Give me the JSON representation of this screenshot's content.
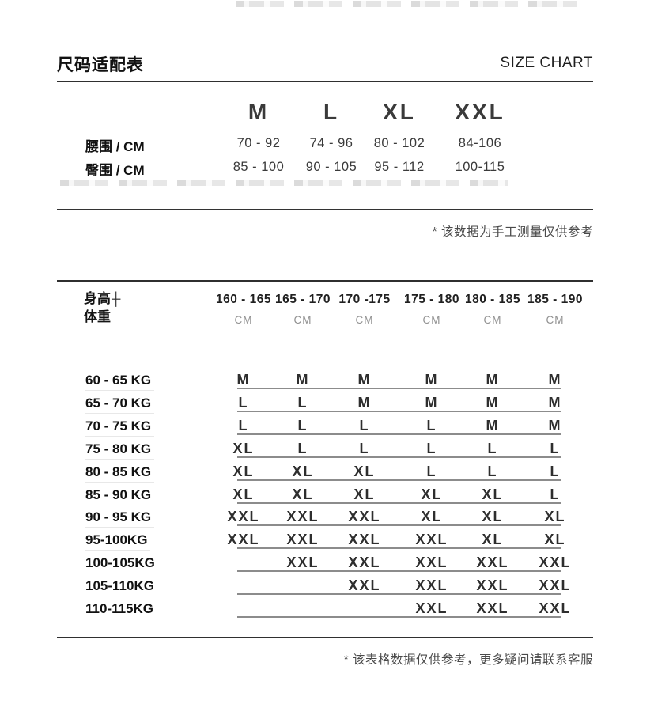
{
  "header": {
    "title_cn": "尺码适配表",
    "title_en": "SIZE CHART"
  },
  "size_table": {
    "size_headers": [
      "M",
      "L",
      "XL",
      "XXL"
    ],
    "rows": [
      {
        "label": "腰围 / CM",
        "values": [
          "70 - 92",
          "74 - 96",
          "80 - 102",
          "84-106"
        ]
      },
      {
        "label": "臀围 / CM",
        "values": [
          "85 - 100",
          "90 - 105",
          "95 - 112",
          "100-115"
        ]
      }
    ],
    "note": "* 该数据为手工测量仅供参考"
  },
  "fit_table": {
    "corner": {
      "top": "身高",
      "bottom": "体重",
      "mark": "┼"
    },
    "columns": [
      {
        "range": "160 - 165",
        "unit": "CM"
      },
      {
        "range": "165 - 170",
        "unit": "CM"
      },
      {
        "range": "170 -175",
        "unit": "CM"
      },
      {
        "range": "175 - 180",
        "unit": "CM"
      },
      {
        "range": "180 - 185",
        "unit": "CM"
      },
      {
        "range": "185 - 190",
        "unit": "CM"
      }
    ],
    "rows": [
      {
        "label": "60 - 65 KG",
        "sizes": [
          "M",
          "M",
          "M",
          "M",
          "M",
          "M"
        ]
      },
      {
        "label": "65 - 70 KG",
        "sizes": [
          "L",
          "L",
          "M",
          "M",
          "M",
          "M"
        ]
      },
      {
        "label": "70 - 75 KG",
        "sizes": [
          "L",
          "L",
          "L",
          "L",
          "M",
          "M"
        ]
      },
      {
        "label": "75 - 80 KG",
        "sizes": [
          "XL",
          "L",
          "L",
          "L",
          "L",
          "L"
        ]
      },
      {
        "label": "80 - 85 KG",
        "sizes": [
          "XL",
          "XL",
          "XL",
          "L",
          "L",
          "L"
        ]
      },
      {
        "label": "85 - 90 KG",
        "sizes": [
          "XL",
          "XL",
          "XL",
          "XL",
          "XL",
          "L"
        ]
      },
      {
        "label": "90 - 95 KG",
        "sizes": [
          "XXL",
          "XXL",
          "XXL",
          "XL",
          "XL",
          "XL"
        ]
      },
      {
        "label": "95-100KG",
        "sizes": [
          "XXL",
          "XXL",
          "XXL",
          "XXL",
          "XL",
          "XL"
        ]
      },
      {
        "label": "100-105KG",
        "sizes": [
          "",
          "XXL",
          "XXL",
          "XXL",
          "XXL",
          "XXL"
        ]
      },
      {
        "label": "105-110KG",
        "sizes": [
          "",
          "",
          "XXL",
          "XXL",
          "XXL",
          "XXL"
        ]
      },
      {
        "label": "110-115KG",
        "sizes": [
          "",
          "",
          "",
          "XXL",
          "XXL",
          "XXL"
        ]
      }
    ],
    "note": "* 该表格数据仅供参考，更多疑问请联系客服"
  },
  "colors": {
    "text": "#111111",
    "value_text": "#3a3a3a",
    "unit_text": "#909090",
    "rule": "#2f2f2f",
    "row_underline": "#8c8c8c",
    "note_text": "#4a4a4a",
    "background": "#ffffff"
  }
}
